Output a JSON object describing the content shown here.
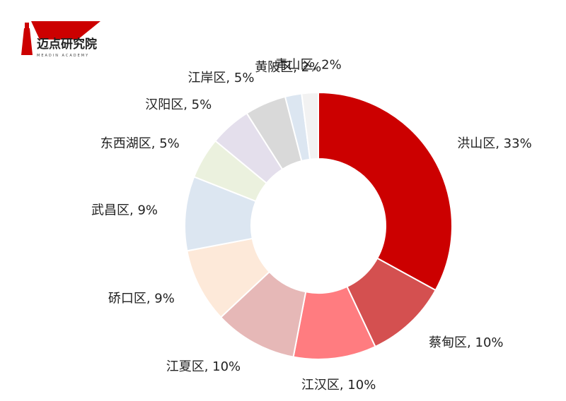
{
  "logo": {
    "name": "迈点研究院",
    "subtitle": "MEADIN ACADEMY"
  },
  "chart_data": {
    "type": "donut",
    "values": [
      33,
      10,
      10,
      10,
      9,
      9,
      5,
      5,
      5,
      2,
      2
    ],
    "value_labels": [
      "洪山区, 33%",
      "蔡甸区, 10%",
      "江汉区, 10%",
      "江夏区, 10%",
      "硚口区, 9%",
      "武昌区, 9%",
      "东西湖区, 5%",
      "汉阳区, 5%",
      "江岸区, 5%",
      "黄陂区, 2%",
      "青山区, 2%"
    ],
    "colors": [
      "#cc0000",
      "#d45050",
      "#ff7c80",
      "#e6b8b7",
      "#fde9d9",
      "#dce6f1",
      "#ebf1de",
      "#e4dfec",
      "#d9d9d9",
      "#dce6f1",
      "#f2f2f2"
    ]
  }
}
